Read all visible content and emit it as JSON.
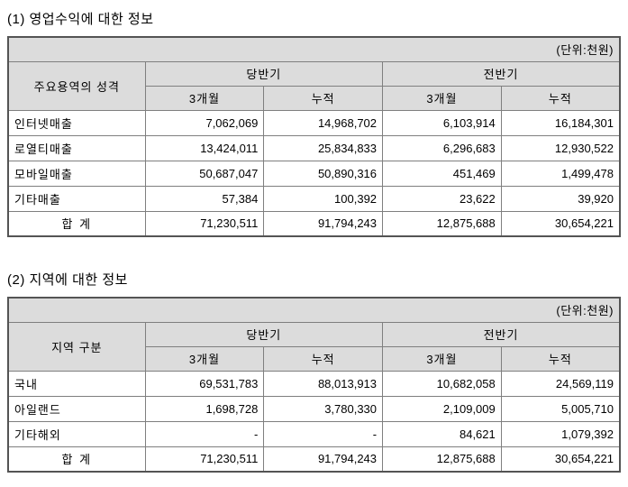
{
  "unit_label": "(단위:천원)",
  "colors": {
    "header_bg": "#dcdcdc",
    "border_inner": "#7f7f7f",
    "border_outer": "#545454",
    "text": "#000000",
    "background": "#ffffff"
  },
  "tables": [
    {
      "title": "(1) 영업수익에 대한 정보",
      "label_header": "주요용역의 성격",
      "group_headers": [
        "당반기",
        "전반기"
      ],
      "sub_headers": [
        "3개월",
        "누적",
        "3개월",
        "누적"
      ],
      "rows": [
        {
          "label": "인터넷매출",
          "values": [
            "7,062,069",
            "14,968,702",
            "6,103,914",
            "16,184,301"
          ]
        },
        {
          "label": "로열티매출",
          "values": [
            "13,424,011",
            "25,834,833",
            "6,296,683",
            "12,930,522"
          ]
        },
        {
          "label": "모바일매출",
          "values": [
            "50,687,047",
            "50,890,316",
            "451,469",
            "1,499,478"
          ]
        },
        {
          "label": "기타매출",
          "values": [
            "57,384",
            "100,392",
            "23,622",
            "39,920"
          ]
        }
      ],
      "total": {
        "label": "합 계",
        "values": [
          "71,230,511",
          "91,794,243",
          "12,875,688",
          "30,654,221"
        ]
      }
    },
    {
      "title": "(2) 지역에 대한 정보",
      "label_header": "지역 구분",
      "group_headers": [
        "당반기",
        "전반기"
      ],
      "sub_headers": [
        "3개월",
        "누적",
        "3개월",
        "누적"
      ],
      "rows": [
        {
          "label": "국내",
          "values": [
            "69,531,783",
            "88,013,913",
            "10,682,058",
            "24,569,119"
          ]
        },
        {
          "label": "아일랜드",
          "values": [
            "1,698,728",
            "3,780,330",
            "2,109,009",
            "5,005,710"
          ]
        },
        {
          "label": "기타해외",
          "values": [
            "-",
            "-",
            "84,621",
            "1,079,392"
          ]
        }
      ],
      "total": {
        "label": "합 계",
        "values": [
          "71,230,511",
          "91,794,243",
          "12,875,688",
          "30,654,221"
        ]
      }
    }
  ]
}
